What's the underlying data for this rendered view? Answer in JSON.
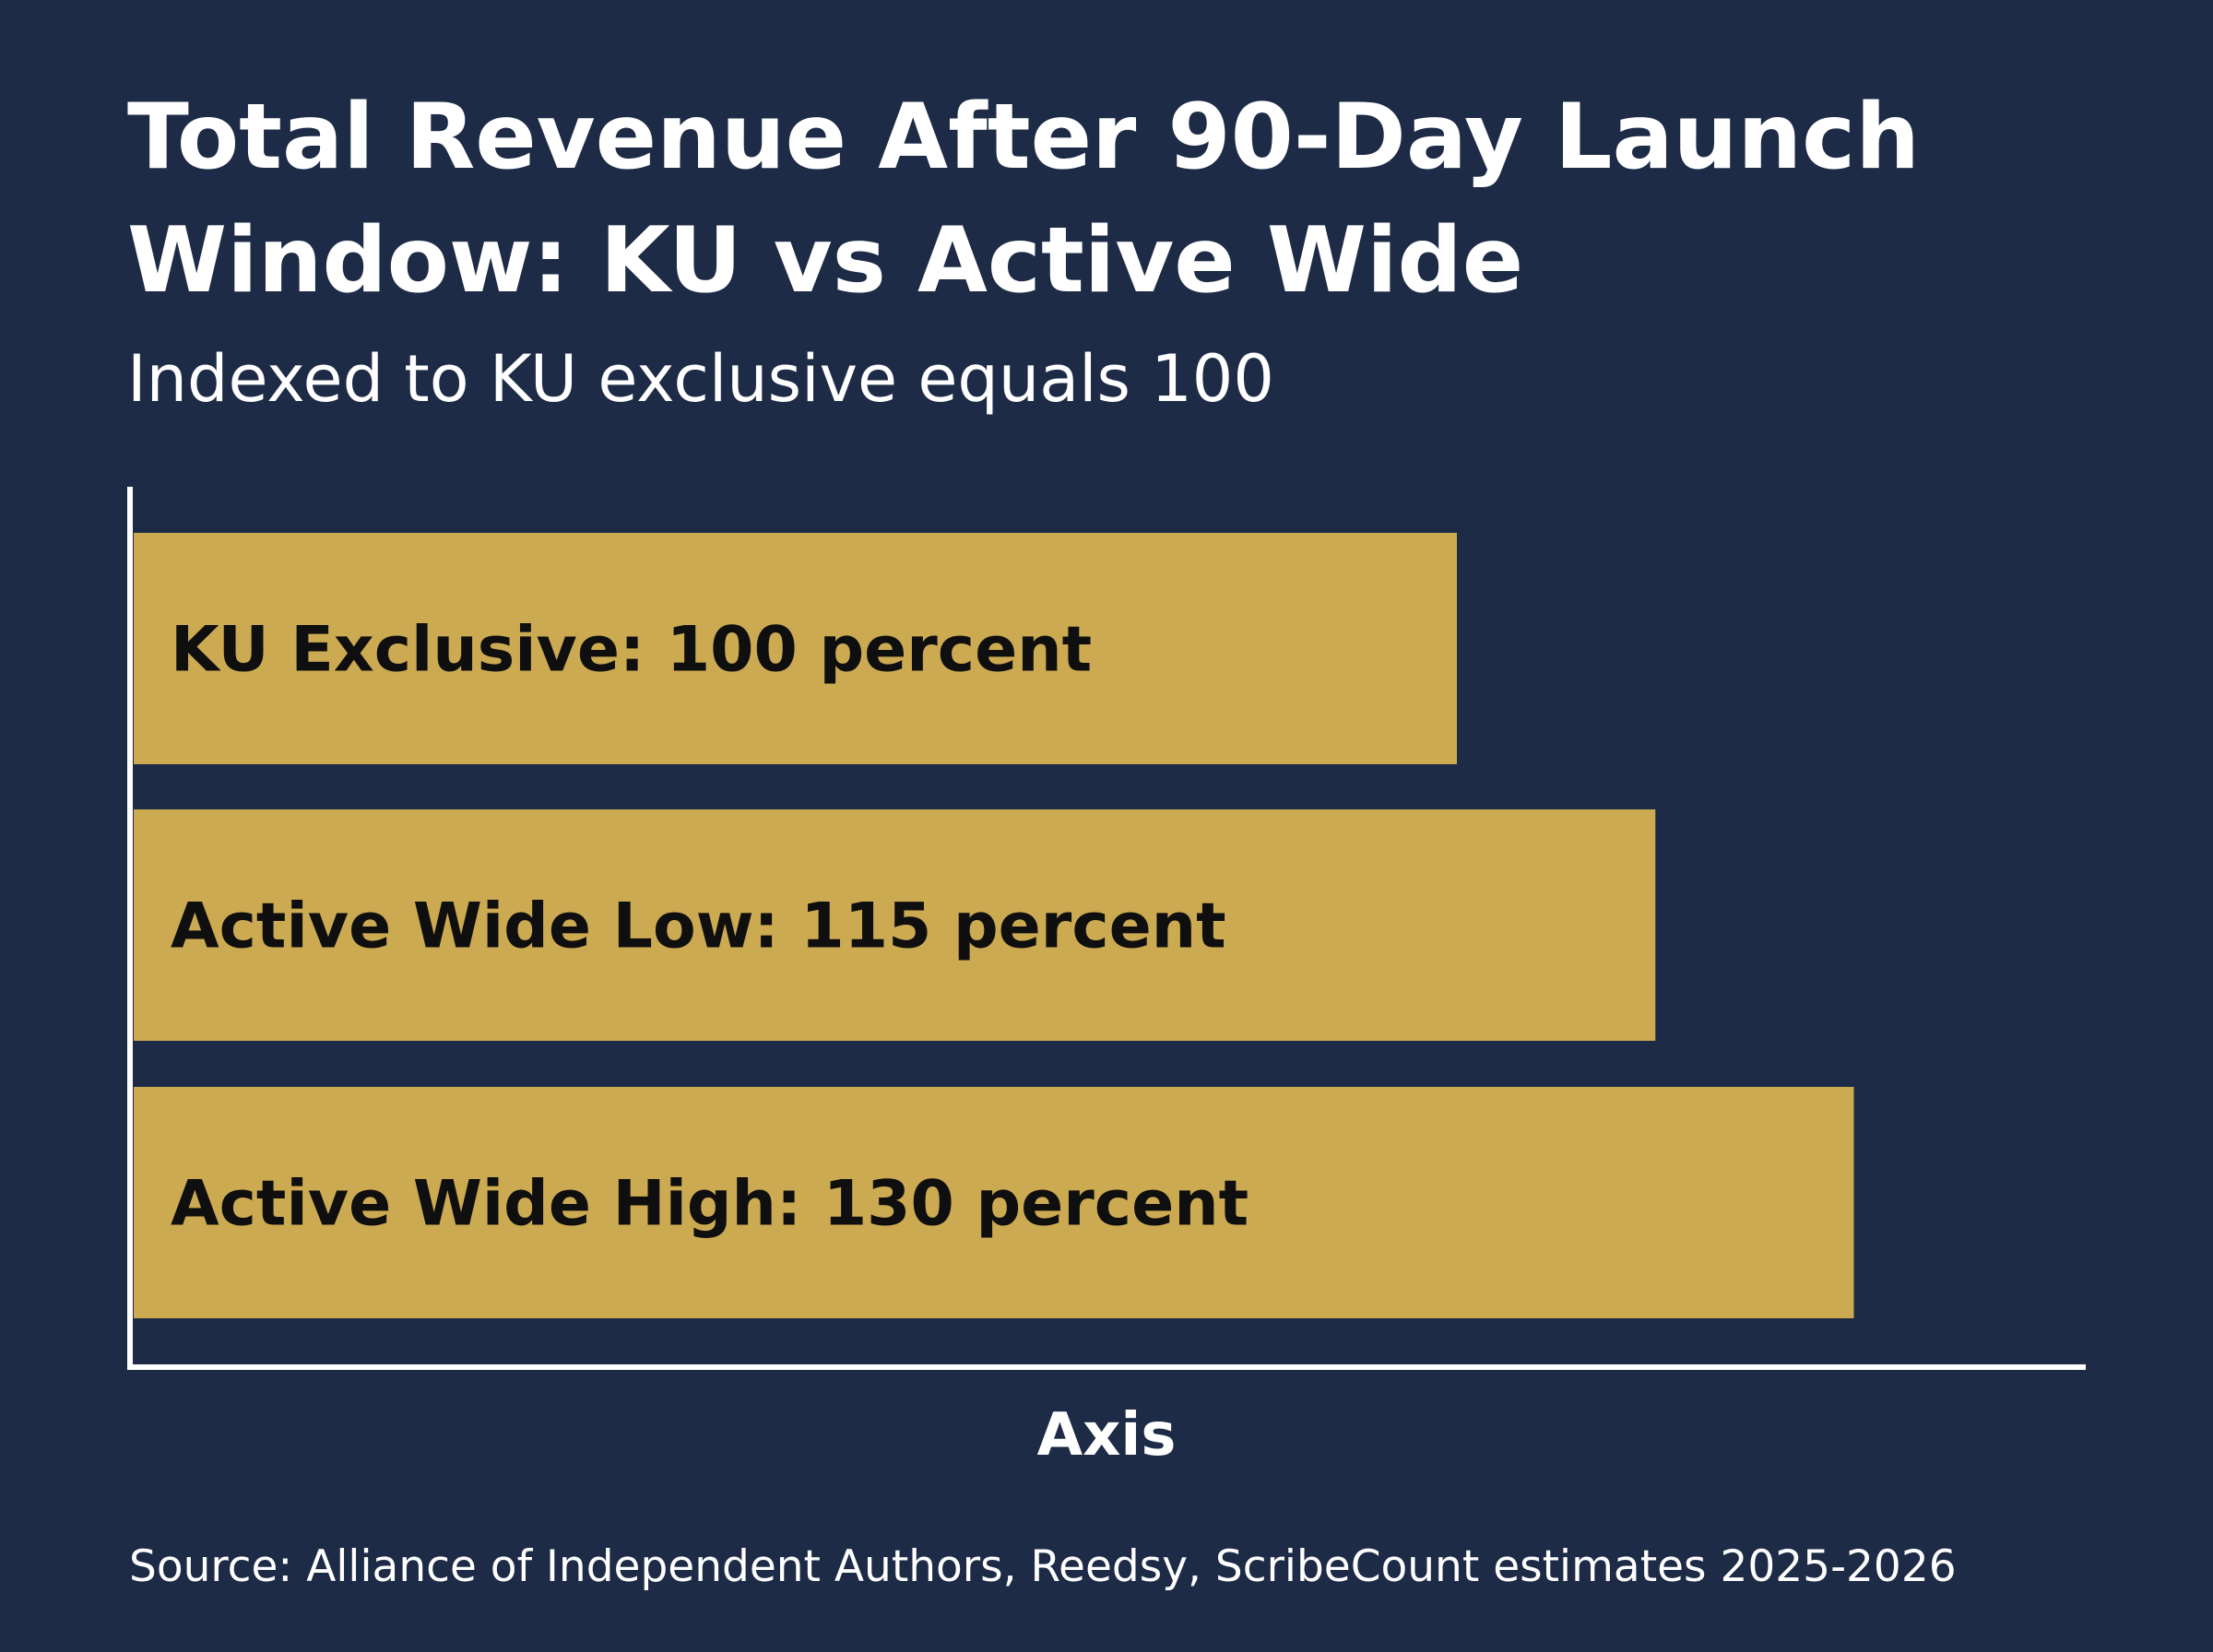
{
  "chart_data": {
    "type": "bar",
    "orientation": "horizontal",
    "title": "Total Revenue After 90-Day Launch Window: KU vs Active Wide",
    "subtitle": "Indexed to KU exclusive equals 100",
    "categories": [
      "KU Exclusive",
      "Active Wide Low",
      "Active Wide High"
    ],
    "values": [
      100,
      115,
      130
    ],
    "data_labels": [
      "KU Exclusive: 100 percent",
      "Active Wide Low: 115 percent",
      "Active Wide High: 130 percent"
    ],
    "xlabel": "Axis",
    "ylabel": "",
    "xlim": [
      0,
      150
    ],
    "grid": false,
    "legend": "none"
  },
  "source": "Source: Alliance of Independent Authors, Reedsy, ScribeCount estimates 2025-2026",
  "colors": {
    "background": "#1d2b47",
    "bar": "#ccaa52",
    "axis": "#ffffff",
    "text": "#ffffff",
    "bar_label": "#0f0f0f"
  }
}
